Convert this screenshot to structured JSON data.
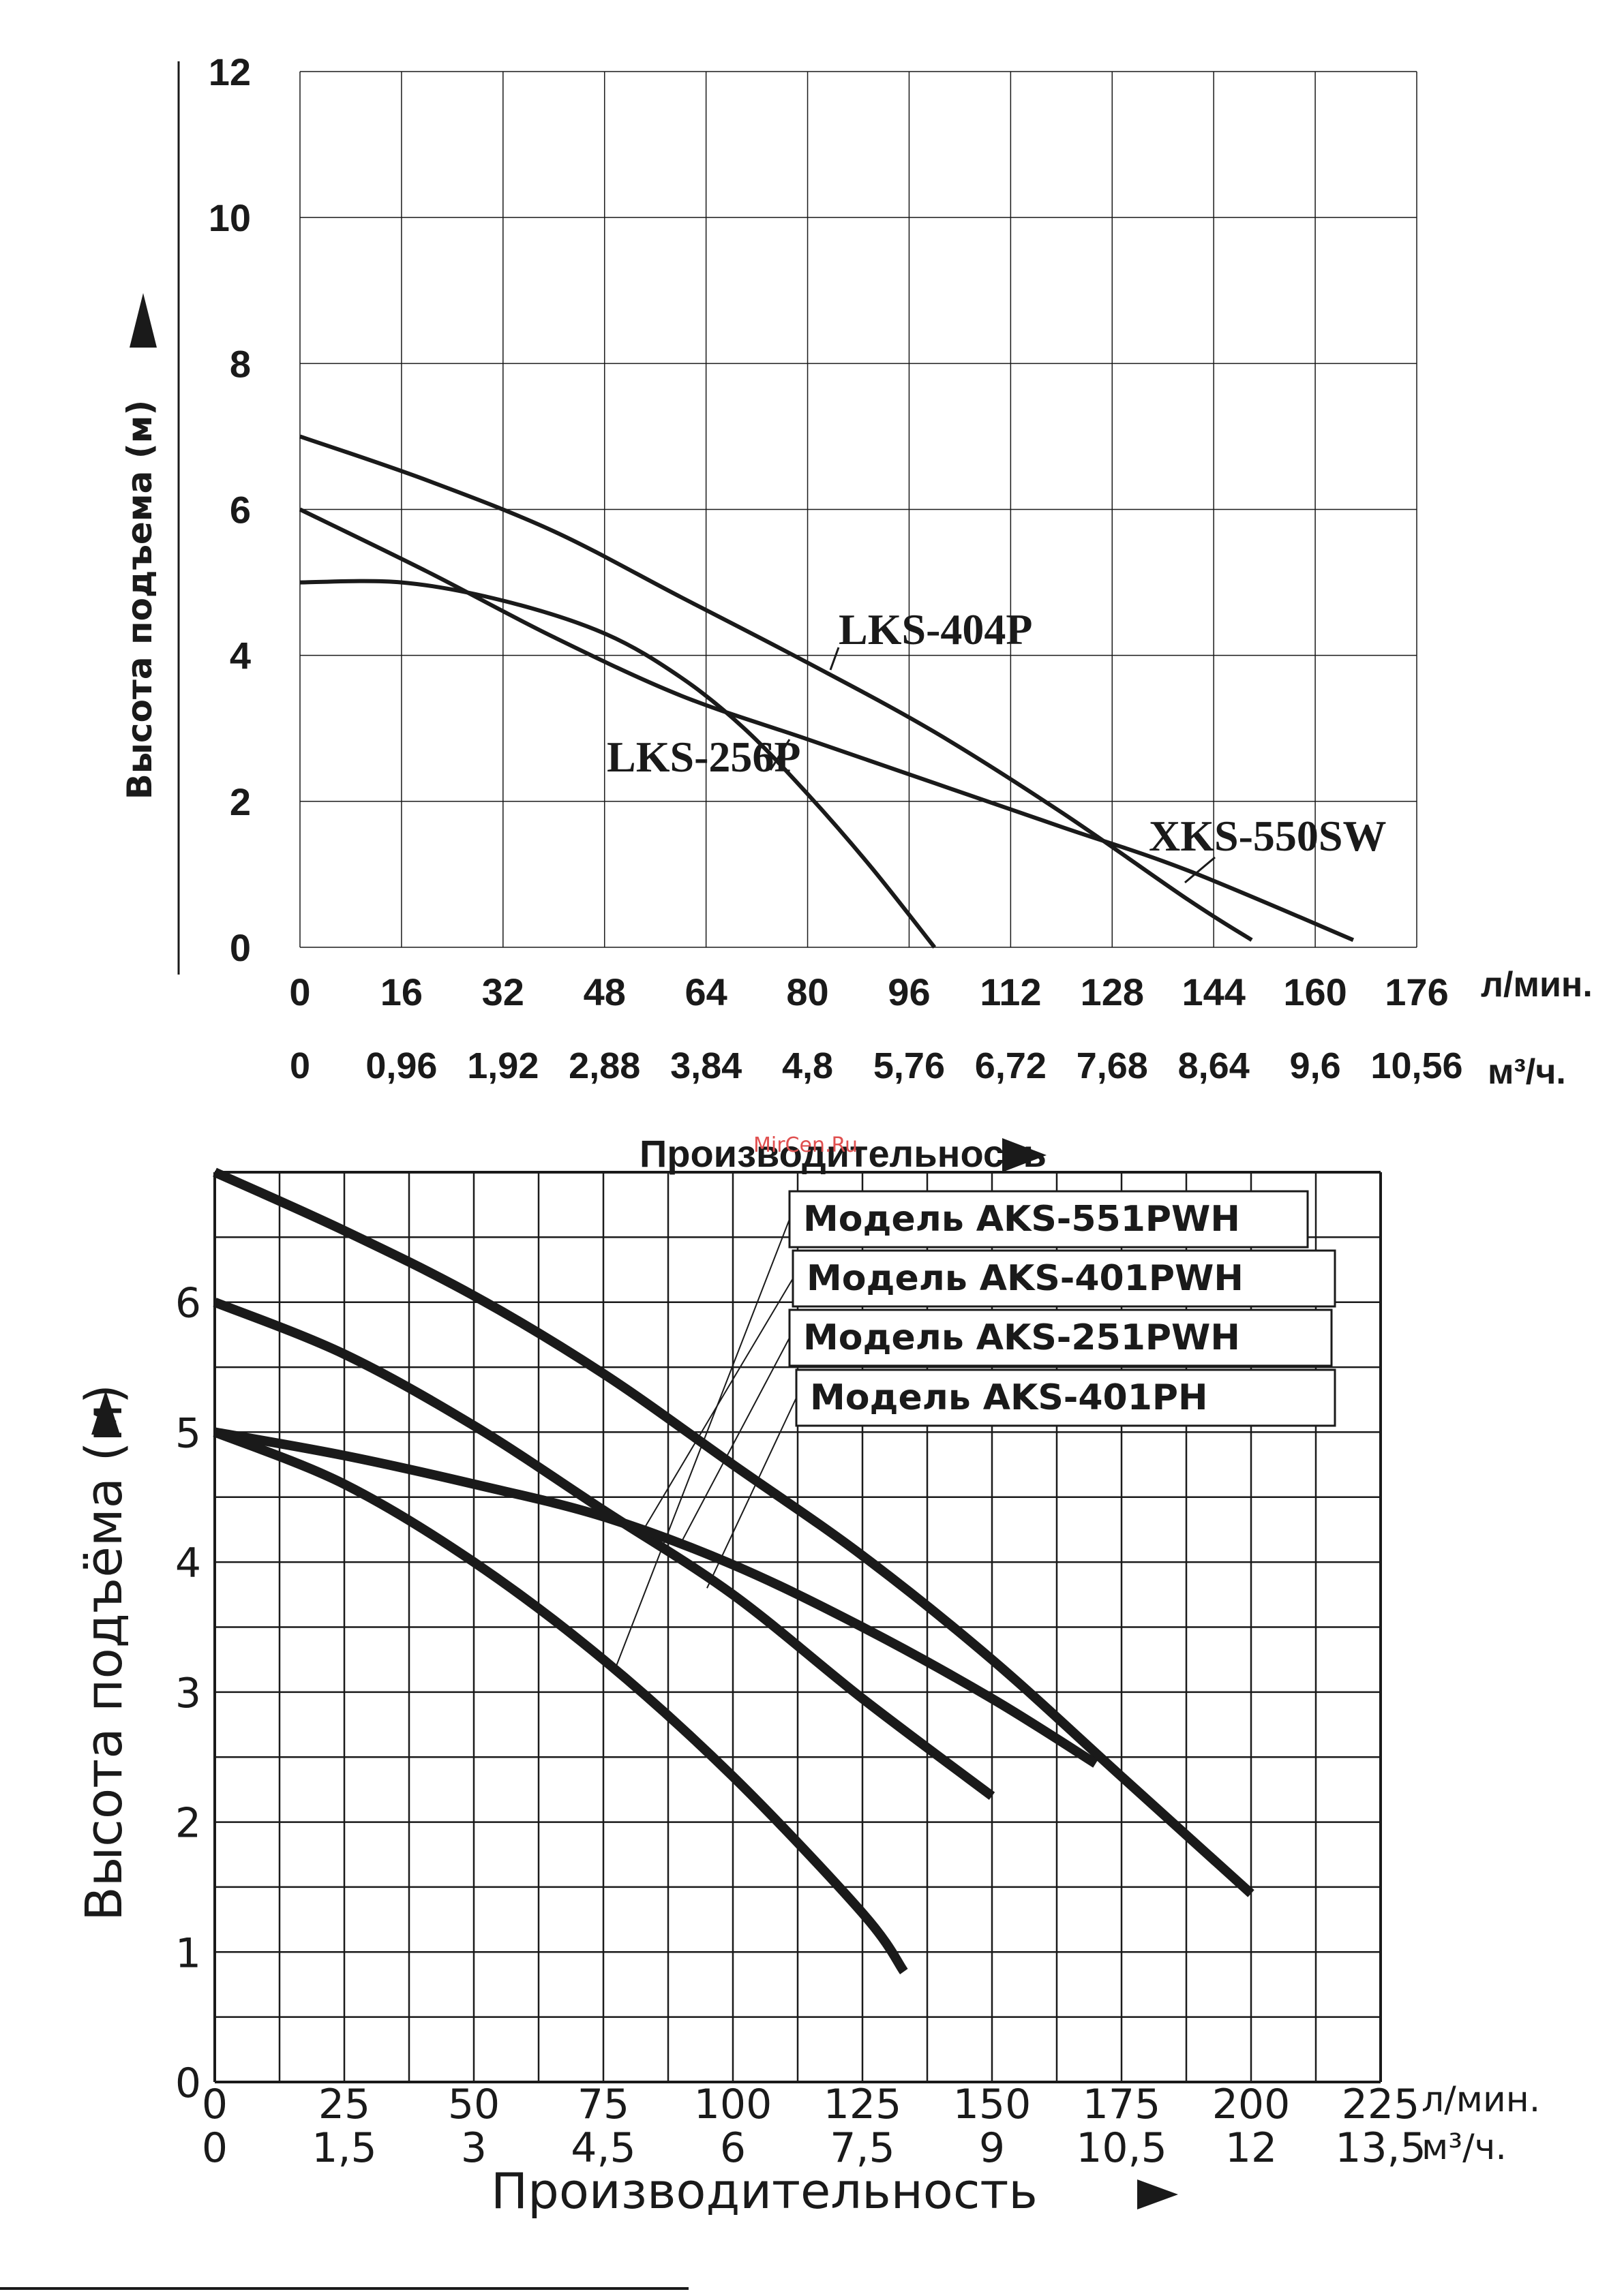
{
  "chart_data": [
    {
      "type": "line",
      "y_axis_label": "Высота подъема (м)",
      "ylim": [
        0,
        12
      ],
      "y_ticks": [
        "0",
        "2",
        "4",
        "6",
        "8",
        "10",
        "12"
      ],
      "x_ticks_lmin": [
        "0",
        "16",
        "32",
        "48",
        "64",
        "80",
        "96",
        "112",
        "128",
        "144",
        "160",
        "176"
      ],
      "x_unit_lmin": "л/мин.",
      "x_ticks_m3h": [
        "0",
        "0,96",
        "1,92",
        "2,88",
        "3,84",
        "4,8",
        "5,76",
        "6,72",
        "7,68",
        "8,64",
        "9,6",
        "10,56"
      ],
      "x_unit_m3h": "м³/ч.",
      "xlabel": "Производительность",
      "xlim": [
        0,
        176
      ],
      "series": [
        {
          "name": "LKS-404P",
          "x": [
            0,
            20,
            40,
            60,
            80,
            100,
            120,
            140,
            150
          ],
          "y": [
            7.0,
            6.4,
            5.7,
            4.8,
            3.9,
            2.95,
            1.85,
            0.65,
            0.1
          ]
        },
        {
          "name": "LKS-256P",
          "x": [
            0,
            16,
            32,
            48,
            60,
            70,
            80,
            90,
            100
          ],
          "y": [
            5.0,
            5.0,
            4.75,
            4.3,
            3.7,
            3.0,
            2.1,
            1.1,
            0.0
          ]
        },
        {
          "name": "XKS-550SW",
          "x": [
            0,
            20,
            40,
            60,
            80,
            100,
            120,
            140,
            166
          ],
          "y": [
            6.0,
            5.15,
            4.25,
            3.45,
            2.85,
            2.25,
            1.65,
            1.05,
            0.1
          ]
        }
      ]
    },
    {
      "type": "line",
      "y_axis_label": "Высота подъёма (м)",
      "ylim": [
        0,
        7
      ],
      "y_ticks": [
        "0",
        "1",
        "2",
        "3",
        "4",
        "5",
        "6"
      ],
      "x_ticks_lmin": [
        "0",
        "25",
        "50",
        "75",
        "100",
        "125",
        "150",
        "175",
        "200",
        "225"
      ],
      "x_unit_lmin": "л/мин.",
      "x_ticks_m3h": [
        "0",
        "1,5",
        "3",
        "4,5",
        "6",
        "7,5",
        "9",
        "10,5",
        "12",
        "13,5"
      ],
      "x_unit_m3h": "м³/ч.",
      "xlabel": "Производительность",
      "xlim": [
        0,
        225
      ],
      "legend": [
        "Модель AKS-551PWH",
        "Модель AKS-401PWH",
        "Модель AKS-251PWH",
        "Модель AKS-401PH"
      ],
      "series": [
        {
          "name": "Модель AKS-551PWH",
          "x": [
            0,
            25,
            50,
            75,
            100,
            125,
            150,
            175,
            200
          ],
          "y": [
            7.0,
            6.55,
            6.05,
            5.45,
            4.75,
            4.05,
            3.25,
            2.35,
            1.45
          ]
        },
        {
          "name": "Модель AKS-401PWH",
          "x": [
            0,
            25,
            50,
            75,
            100,
            125,
            150
          ],
          "y": [
            6.0,
            5.6,
            5.05,
            4.4,
            3.75,
            2.95,
            2.2
          ]
        },
        {
          "name": "Модель AKS-251PWH",
          "x": [
            0,
            25,
            50,
            75,
            100,
            125,
            150,
            170
          ],
          "y": [
            5.0,
            4.82,
            4.6,
            4.35,
            3.98,
            3.5,
            2.95,
            2.45
          ]
        },
        {
          "name": "Модель AKS-401PH",
          "x": [
            0,
            25,
            50,
            75,
            100,
            125,
            133
          ],
          "y": [
            5.0,
            4.6,
            4.0,
            3.25,
            2.35,
            1.3,
            0.85
          ]
        }
      ]
    }
  ],
  "watermark": "MirCen.Ru",
  "colors": {
    "ink": "#1a1a1a",
    "grid": "#1a1a1a",
    "watermark": "#e05050"
  }
}
